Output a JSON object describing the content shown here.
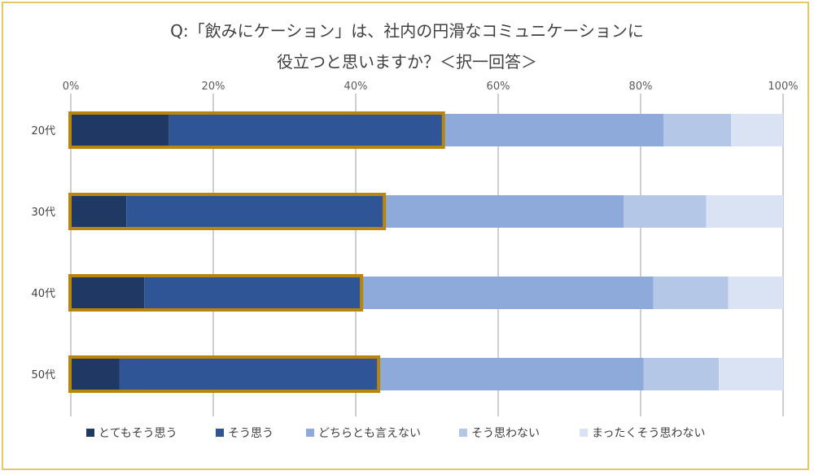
{
  "chart_data": {
    "type": "bar",
    "orientation": "horizontal",
    "stacked": "percent",
    "title_line1": "Q:「飲みにケーション」は、社内の円滑なコミュニケーションに",
    "title_line2": "役立つと思いますか？＜択一回答＞",
    "xlim": [
      0,
      100
    ],
    "tick_labels": [
      "0%",
      "20%",
      "40%",
      "60%",
      "80%",
      "100%"
    ],
    "tick_values": [
      0,
      20,
      40,
      60,
      80,
      100
    ],
    "grid": true,
    "legend_position": "bottom",
    "categories": [
      "20代",
      "30代",
      "40代",
      "50代"
    ],
    "series": [
      {
        "name": "とてもそう思う",
        "color": "#1f3864",
        "values": [
          13.8,
          7.8,
          10.3,
          6.8
        ]
      },
      {
        "name": "そう思う",
        "color": "#2f5597",
        "values": [
          38.4,
          36.1,
          30.4,
          36.3
        ]
      },
      {
        "name": "どちらとも言えない",
        "color": "#8eaadb",
        "values": [
          31.0,
          33.7,
          41.1,
          37.3
        ]
      },
      {
        "name": "そう思わない",
        "color": "#b4c7e7",
        "values": [
          9.5,
          11.6,
          10.5,
          10.6
        ]
      },
      {
        "name": "まったくそう思わない",
        "color": "#dae3f3",
        "values": [
          7.3,
          10.8,
          7.7,
          9.0
        ]
      }
    ],
    "highlight": {
      "description": "outlined top-two box",
      "series_count": 2,
      "color": "#b8860b"
    },
    "gridline_color": "#bfbfbf"
  }
}
